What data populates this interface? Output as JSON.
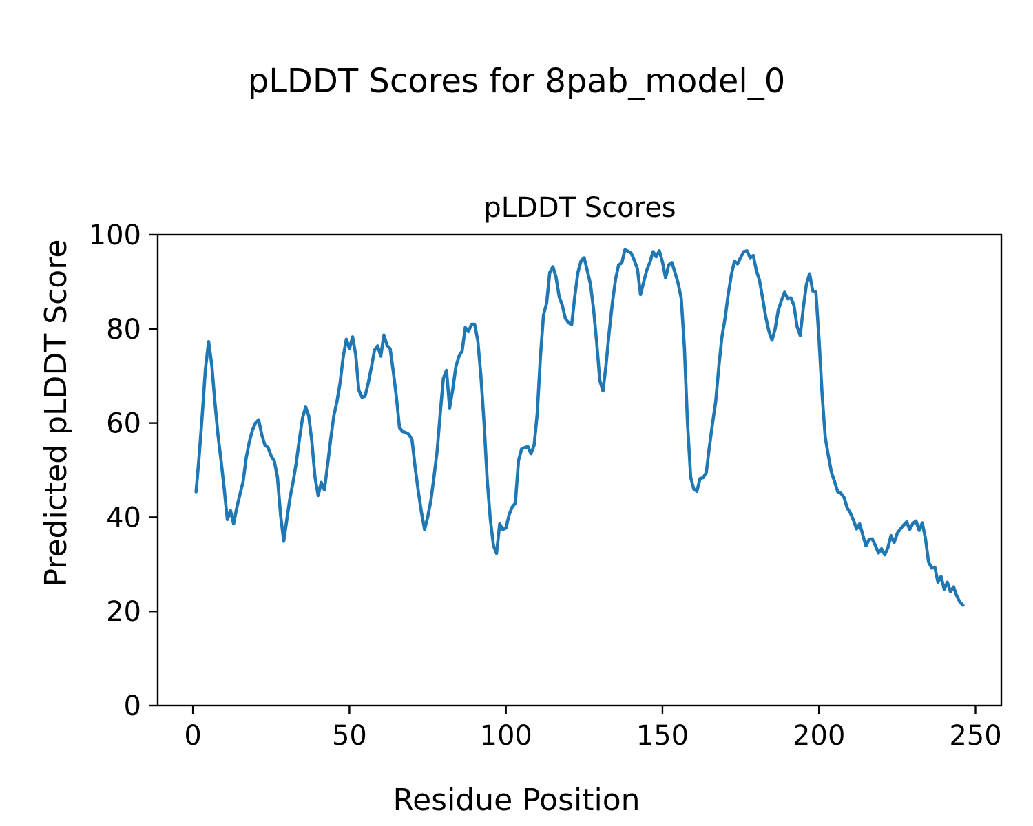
{
  "figure": {
    "suptitle": "pLDDT Scores for 8pab_model_0",
    "background_color": "#ffffff",
    "text_color": "#000000"
  },
  "chart_data": {
    "type": "line",
    "title": "pLDDT Scores",
    "xlabel": "Residue Position",
    "ylabel": "Predicted pLDDT Score",
    "xlim": [
      -11.25,
      258.25
    ],
    "ylim": [
      0,
      100
    ],
    "x_ticks": [
      0,
      50,
      100,
      150,
      200,
      250
    ],
    "y_ticks": [
      0,
      20,
      40,
      60,
      80,
      100
    ],
    "grid": false,
    "legend": null,
    "series": [
      {
        "name": "pLDDT",
        "color": "#1f77b4",
        "line_width": 4.6,
        "x_start": 1,
        "x_step": 1,
        "values": [
          45.4,
          53,
          62,
          71.5,
          77.3,
          72.5,
          64.5,
          57.5,
          52,
          46,
          39.5,
          41.4,
          38.6,
          42,
          44.8,
          47.5,
          52.5,
          56,
          58.5,
          60,
          60.7,
          57.5,
          55.3,
          54.8,
          53,
          51.9,
          48.5,
          40.5,
          34.9,
          39.5,
          44,
          47.5,
          51.5,
          56.5,
          61,
          63.4,
          61.5,
          56,
          48.5,
          44.6,
          47.4,
          45.8,
          51,
          56.5,
          61.5,
          64.5,
          68.5,
          74,
          77.8,
          75.8,
          78.3,
          74.5,
          67,
          65.5,
          65.7,
          68.5,
          71.8,
          75.5,
          76.4,
          74.2,
          78.7,
          76.5,
          75.8,
          71,
          65.5,
          59,
          58.2,
          58,
          57.6,
          56.4,
          50.5,
          45.5,
          41,
          37.4,
          40,
          43.5,
          48.5,
          54,
          62,
          69.5,
          71.2,
          63.2,
          67.2,
          72,
          74.2,
          75.3,
          80.3,
          79.4,
          81,
          81,
          77.5,
          70,
          60,
          48,
          39.5,
          34,
          32.3,
          38.6,
          37.4,
          37.7,
          40.5,
          42.2,
          43,
          52,
          54.5,
          54.8,
          55,
          53.5,
          55.3,
          62,
          74,
          83,
          85.5,
          92,
          93.2,
          91,
          86.8,
          85,
          82.2,
          81.3,
          80.9,
          87,
          92,
          94.5,
          95.1,
          92.3,
          89.5,
          84,
          77,
          69,
          66.8,
          72.5,
          79.5,
          85.5,
          90.5,
          93.6,
          94,
          96.8,
          96.5,
          96.1,
          94.6,
          92.7,
          87.3,
          90,
          92.5,
          94.2,
          96.4,
          95.3,
          96.6,
          94.2,
          90.8,
          93.6,
          94.1,
          92,
          89.7,
          86.5,
          76,
          60,
          48.5,
          46,
          45.5,
          48.2,
          48.4,
          49.5,
          55,
          60,
          64.5,
          72,
          78.3,
          82.3,
          87.3,
          91.5,
          94.4,
          93.8,
          95.2,
          96.4,
          96.6,
          95.1,
          95.6,
          92.4,
          90.3,
          86.5,
          82.5,
          79.5,
          77.6,
          80,
          84,
          86,
          87.8,
          86.4,
          86.6,
          85,
          80.5,
          78.6,
          84.5,
          89.5,
          91.7,
          88.1,
          87.8,
          78,
          66,
          57,
          53,
          49.5,
          47.5,
          45.4,
          45.1,
          44.2,
          42,
          40.9,
          39.4,
          37.5,
          38.6,
          36.2,
          33.9,
          35.3,
          35.4,
          34,
          32.4,
          33.3,
          32,
          33.5,
          36.1,
          34.6,
          36.6,
          37.5,
          38.3,
          39,
          37.4,
          38.7,
          39.2,
          37.2,
          38.8,
          35.5,
          30.5,
          29.2,
          29.4,
          26.2,
          27.4,
          24.7,
          26.2,
          24.2,
          25.2,
          23.3,
          22,
          21.3
        ]
      }
    ],
    "axes_style": {
      "spine_color": "#000000",
      "spine_width": 2.4,
      "tick_length": 12,
      "tick_width": 2.4
    }
  }
}
